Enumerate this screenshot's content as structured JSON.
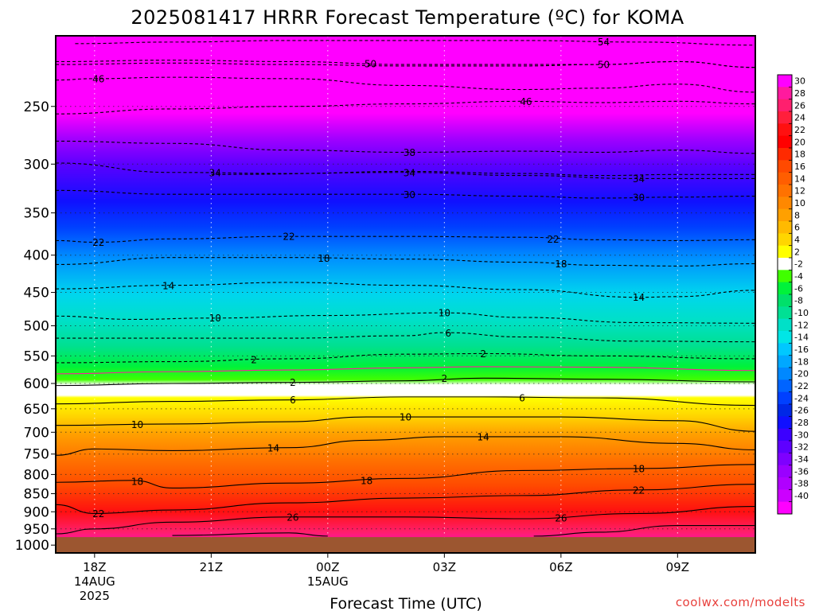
{
  "chart_data": {
    "type": "heatmap",
    "title": "2025081417 HRRR Forecast Temperature (ºC) for KOMA",
    "xlabel": "Forecast Time (UTC)",
    "ylabel": "",
    "credit": "coolwx.com/modelts",
    "x_ticks": [
      {
        "label": "18Z",
        "sub1": "14AUG",
        "sub2": "2025",
        "hour": 18
      },
      {
        "label": "21Z",
        "sub1": "",
        "sub2": "",
        "hour": 21
      },
      {
        "label": "00Z",
        "sub1": "15AUG",
        "sub2": "",
        "hour": 24
      },
      {
        "label": "03Z",
        "sub1": "",
        "sub2": "",
        "hour": 27
      },
      {
        "label": "06Z",
        "sub1": "",
        "sub2": "",
        "hour": 30
      },
      {
        "label": "09Z",
        "sub1": "",
        "sub2": "",
        "hour": 33
      }
    ],
    "xlim_hours": [
      17,
      35
    ],
    "y_axis": "pressure (hPa, inverted, log scale)",
    "y_ticks": [
      250,
      300,
      350,
      400,
      450,
      500,
      550,
      600,
      650,
      700,
      750,
      800,
      850,
      900,
      950,
      1000
    ],
    "ylim": [
      200,
      1025
    ],
    "ground_level_hpa": 975,
    "ground_color": "#9c5630",
    "grid": true,
    "colorbar": {
      "labels": [
        "30",
        "28",
        "26",
        "24",
        "22",
        "20",
        "18",
        "16",
        "14",
        "12",
        "10",
        "8",
        "6",
        "4",
        "2",
        "-2",
        "-4",
        "-6",
        "-8",
        "-10",
        "-12",
        "-14",
        "-16",
        "-18",
        "-20",
        "-22",
        "-24",
        "-26",
        "-28",
        "-30",
        "-32",
        "-34",
        "-36",
        "-38",
        "-40"
      ],
      "colors": [
        "#ff00ff",
        "#ff1a9e",
        "#ff1f6e",
        "#ff1f3c",
        "#ff1010",
        "#ff0000",
        "#ff2a00",
        "#ff4a00",
        "#ff5e00",
        "#ff7200",
        "#ff8800",
        "#ffa000",
        "#ffba00",
        "#ffd600",
        "#ffff00",
        "#ffffff",
        "#40ff00",
        "#00f23a",
        "#00e06a",
        "#00e094",
        "#00e0c8",
        "#00e6e6",
        "#00c8ff",
        "#00a8ff",
        "#0088ff",
        "#0064ff",
        "#0040ff",
        "#0028e6",
        "#1010ff",
        "#3c00ff",
        "#5e00ff",
        "#7e00ff",
        "#9a00ff",
        "#b000ff",
        "#cc00ff",
        "#ff00ff"
      ]
    },
    "isotherms": [
      {
        "value": -54,
        "label": "54",
        "dashed": true,
        "label_hour": 31.1,
        "points": [
          [
            17.5,
            205
          ],
          [
            20,
            204
          ],
          [
            23,
            203
          ],
          [
            26,
            203
          ],
          [
            29,
            203
          ],
          [
            32,
            204
          ],
          [
            35,
            206
          ]
        ]
      },
      {
        "value": -50,
        "label": "50",
        "dashed": true,
        "label_hour": 25.1,
        "points": [
          [
            17,
            217
          ],
          [
            20,
            216
          ],
          [
            23,
            217
          ],
          [
            26,
            219
          ],
          [
            29,
            219
          ],
          [
            31,
            219
          ],
          [
            33,
            217
          ],
          [
            35,
            221
          ]
        ]
      },
      {
        "value": -50,
        "label": "50",
        "dashed": true,
        "label_hour": 31.1,
        "points": [
          [
            17,
            219
          ],
          [
            20,
            218
          ],
          [
            23,
            219
          ],
          [
            26,
            220
          ],
          [
            29,
            220
          ],
          [
            31,
            219
          ],
          [
            33,
            217
          ],
          [
            35,
            221
          ]
        ]
      },
      {
        "value": -46,
        "label": "46",
        "dashed": true,
        "label_hour": 18.1,
        "points": [
          [
            17,
            230
          ],
          [
            18,
            229
          ],
          [
            20,
            228
          ],
          [
            23,
            229
          ],
          [
            26,
            234
          ],
          [
            29,
            237
          ],
          [
            31,
            236
          ],
          [
            33,
            233
          ],
          [
            35,
            239
          ]
        ]
      },
      {
        "value": -46,
        "label": "46",
        "dashed": true,
        "label_hour": 29.1,
        "points": [
          [
            17,
            256
          ],
          [
            20,
            252
          ],
          [
            23,
            250
          ],
          [
            26,
            248
          ],
          [
            29,
            246
          ],
          [
            31,
            247
          ],
          [
            33,
            246
          ],
          [
            35,
            248
          ]
        ]
      },
      {
        "value": -38,
        "label": "38",
        "dashed": true,
        "label_hour": 26.1,
        "points": [
          [
            17,
            279
          ],
          [
            20,
            281
          ],
          [
            23,
            287
          ],
          [
            26,
            289
          ],
          [
            29,
            288
          ],
          [
            31,
            289
          ],
          [
            33,
            287
          ],
          [
            35,
            290
          ]
        ]
      },
      {
        "value": -34,
        "label": "34",
        "dashed": true,
        "label_hour": 21.1,
        "points": [
          [
            17,
            299
          ],
          [
            20,
            308
          ],
          [
            23,
            309
          ],
          [
            26,
            307
          ],
          [
            29,
            309
          ],
          [
            31,
            311
          ],
          [
            33,
            310
          ],
          [
            35,
            310
          ]
        ]
      },
      {
        "value": -34,
        "label": "34",
        "dashed": true,
        "label_hour": 26.1,
        "points": [
          [
            21,
            310
          ],
          [
            26,
            308
          ],
          [
            29,
            311
          ],
          [
            32,
            314
          ],
          [
            35,
            314
          ]
        ]
      },
      {
        "value": -30,
        "label": "30",
        "dashed": true,
        "label_hour": 26.1,
        "points": [
          [
            17,
            326
          ],
          [
            20,
            330
          ],
          [
            23,
            330
          ],
          [
            26,
            330
          ],
          [
            29,
            332
          ],
          [
            31,
            334
          ],
          [
            33,
            333
          ],
          [
            35,
            332
          ]
        ]
      },
      {
        "value": -22,
        "label": "22",
        "dashed": true,
        "label_hour": 18.1,
        "points": [
          [
            17,
            382
          ],
          [
            18,
            384
          ],
          [
            20,
            380
          ],
          [
            23,
            377
          ],
          [
            26,
            377
          ],
          [
            29,
            378
          ],
          [
            31,
            381
          ],
          [
            33,
            382
          ],
          [
            35,
            381
          ]
        ]
      },
      {
        "value": -18,
        "label": "18",
        "dashed": true,
        "label_hour": 23.9,
        "points": [
          [
            17,
            412
          ],
          [
            20,
            403
          ],
          [
            23,
            403
          ],
          [
            26,
            405
          ],
          [
            29,
            409
          ],
          [
            31,
            413
          ],
          [
            33,
            414
          ],
          [
            35,
            411
          ]
        ]
      },
      {
        "value": -14,
        "label": "14",
        "dashed": true,
        "label_hour": 19.9,
        "points": [
          [
            17,
            445
          ],
          [
            20,
            440
          ],
          [
            23,
            436
          ],
          [
            26,
            440
          ],
          [
            29,
            446
          ],
          [
            32,
            457
          ],
          [
            33,
            456
          ],
          [
            35,
            447
          ]
        ]
      },
      {
        "value": -10,
        "label": "10",
        "dashed": true,
        "label_hour": 21.1,
        "points": [
          [
            17,
            485
          ],
          [
            19,
            490
          ],
          [
            21,
            488
          ],
          [
            24,
            484
          ],
          [
            27,
            480
          ],
          [
            29,
            487
          ],
          [
            32,
            495
          ],
          [
            35,
            496
          ]
        ]
      },
      {
        "value": -6,
        "label": "6",
        "dashed": true,
        "label_hour": 27.1,
        "points": [
          [
            17,
            520
          ],
          [
            20,
            520
          ],
          [
            23,
            520
          ],
          [
            26,
            516
          ],
          [
            27,
            511
          ],
          [
            29,
            518
          ],
          [
            32,
            525
          ],
          [
            35,
            526
          ]
        ]
      },
      {
        "value": -2,
        "label": "2",
        "dashed": true,
        "label_hour": 22.1,
        "points": [
          [
            17,
            562
          ],
          [
            20,
            560
          ],
          [
            23,
            555
          ],
          [
            26,
            547
          ],
          [
            28,
            546
          ],
          [
            31,
            550
          ],
          [
            35,
            555
          ]
        ]
      },
      {
        "value": 0,
        "label": "",
        "dashed": false,
        "color": "#ff1a9e",
        "label_hour": 0,
        "points": [
          [
            17,
            582
          ],
          [
            20,
            578
          ],
          [
            23,
            575
          ],
          [
            26,
            571
          ],
          [
            28,
            569
          ],
          [
            31,
            570
          ],
          [
            35,
            576
          ]
        ]
      },
      {
        "value": 2,
        "label": "2",
        "dashed": false,
        "label_hour": 23.1,
        "points": [
          [
            17,
            604
          ],
          [
            20,
            600
          ],
          [
            23,
            598
          ],
          [
            26,
            595
          ],
          [
            28,
            590
          ],
          [
            31,
            592
          ],
          [
            35,
            597
          ]
        ]
      },
      {
        "value": 6,
        "label": "6",
        "dashed": false,
        "label_hour": 23.1,
        "points": [
          [
            17,
            640
          ],
          [
            20,
            635
          ],
          [
            23,
            632
          ],
          [
            26,
            626
          ],
          [
            28,
            626
          ],
          [
            31,
            628
          ],
          [
            35,
            643
          ]
        ]
      },
      {
        "value": 10,
        "label": "10",
        "dashed": false,
        "label_hour": 19.1,
        "points": [
          [
            17,
            685
          ],
          [
            20,
            682
          ],
          [
            23,
            677
          ],
          [
            25,
            667
          ],
          [
            27,
            667
          ],
          [
            30,
            667
          ],
          [
            33,
            675
          ],
          [
            35,
            698
          ]
        ]
      },
      {
        "value": 14,
        "label": "14",
        "dashed": false,
        "label_hour": 22.6,
        "points": [
          [
            17,
            753
          ],
          [
            18,
            738
          ],
          [
            20,
            742
          ],
          [
            23,
            735
          ],
          [
            25,
            718
          ],
          [
            27,
            710
          ],
          [
            30,
            710
          ],
          [
            33,
            725
          ],
          [
            35,
            740
          ]
        ]
      },
      {
        "value": 18,
        "label": "18",
        "dashed": false,
        "label_hour": 19.1,
        "points": [
          [
            17,
            820
          ],
          [
            19,
            815
          ],
          [
            20,
            835
          ],
          [
            23,
            822
          ],
          [
            26,
            810
          ],
          [
            29,
            790
          ],
          [
            32,
            785
          ],
          [
            35,
            775
          ]
        ]
      },
      {
        "value": 22,
        "label": "22",
        "dashed": false,
        "label_hour": 18.1,
        "points": [
          [
            17,
            880
          ],
          [
            18,
            905
          ],
          [
            20,
            895
          ],
          [
            23,
            875
          ],
          [
            26,
            862
          ],
          [
            29,
            855
          ],
          [
            32,
            840
          ],
          [
            35,
            825
          ]
        ]
      },
      {
        "value": 26,
        "label": "26",
        "dashed": false,
        "label_hour": 23.1,
        "points": [
          [
            17,
            965
          ],
          [
            18,
            950
          ],
          [
            20,
            930
          ],
          [
            23,
            915
          ],
          [
            26,
            915
          ],
          [
            29,
            920
          ],
          [
            32,
            905
          ],
          [
            35,
            885
          ]
        ]
      },
      {
        "value": 30,
        "label": "",
        "dashed": false,
        "label_hour": 0,
        "points": [
          [
            20,
            970
          ],
          [
            23,
            962
          ],
          [
            24,
            972
          ]
        ]
      },
      {
        "value": 30,
        "label": "",
        "dashed": false,
        "label_hour": 0,
        "points": [
          [
            29.3,
            972
          ],
          [
            31,
            960
          ],
          [
            33,
            940
          ],
          [
            35,
            940
          ]
        ]
      }
    ],
    "isotherm_labels_extra": [
      {
        "label": "6",
        "hour": 29.0,
        "hpa": 628
      },
      {
        "label": "2",
        "hour": 27.0,
        "hpa": 590
      },
      {
        "label": "10",
        "hour": 26.0,
        "hpa": 667
      },
      {
        "label": "14",
        "hour": 28.0,
        "hpa": 710
      },
      {
        "label": "18",
        "hour": 32.0,
        "hpa": 785
      },
      {
        "label": "22",
        "hour": 32.0,
        "hpa": 840
      },
      {
        "label": "26",
        "hour": 30.0,
        "hpa": 918
      },
      {
        "label": "18",
        "hour": 25.0,
        "hpa": 815
      },
      {
        "label": "2",
        "hour": 28.0,
        "hpa": 546
      },
      {
        "label": "10",
        "hour": 27.0,
        "hpa": 480
      },
      {
        "label": "14",
        "hour": 32.0,
        "hpa": 457
      },
      {
        "label": "18",
        "hour": 30.0,
        "hpa": 411
      },
      {
        "label": "22",
        "hour": 29.8,
        "hpa": 380
      },
      {
        "label": "22",
        "hour": 23.0,
        "hpa": 377
      },
      {
        "label": "30",
        "hour": 32.0,
        "hpa": 333
      },
      {
        "label": "34",
        "hour": 32.0,
        "hpa": 314
      }
    ]
  }
}
